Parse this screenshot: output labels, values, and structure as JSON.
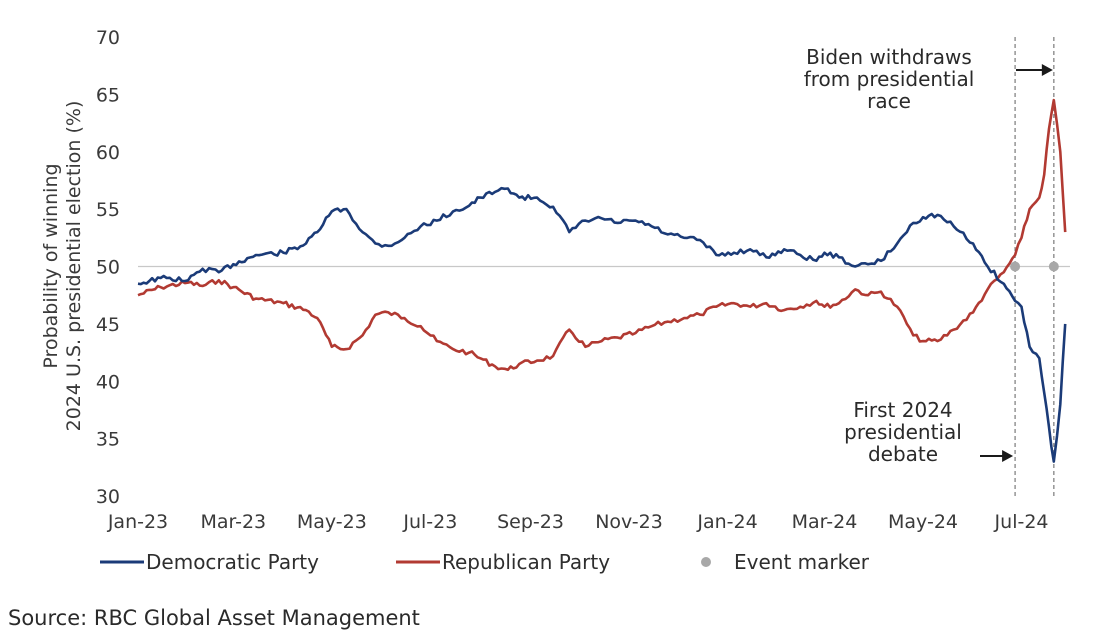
{
  "source": "Source: RBC Global Asset Management",
  "colors": {
    "democratic": "#1b3b78",
    "republican": "#b23a32",
    "event": "#a8a8a8",
    "reference": "#c8c8c8"
  },
  "chart_data": {
    "type": "line",
    "title": "",
    "xlabel": "",
    "ylabel": "Probability of winning 2024 U.S. presidential election (%)",
    "ylabel_lines": [
      "Probability of winning",
      "2024 U.S. presidential election (%)"
    ],
    "ylim": [
      30,
      70
    ],
    "yticks": [
      30,
      35,
      40,
      45,
      50,
      55,
      60,
      65,
      70
    ],
    "xlim": [
      "2023-01-01",
      "2024-07-31"
    ],
    "xticks": [
      {
        "date": "2023-01-01",
        "label": "Jan-23"
      },
      {
        "date": "2023-03-01",
        "label": "Mar-23"
      },
      {
        "date": "2023-05-01",
        "label": "May-23"
      },
      {
        "date": "2023-07-01",
        "label": "Jul-23"
      },
      {
        "date": "2023-09-01",
        "label": "Sep-23"
      },
      {
        "date": "2023-11-01",
        "label": "Nov-23"
      },
      {
        "date": "2024-01-01",
        "label": "Jan-24"
      },
      {
        "date": "2024-03-01",
        "label": "Mar-24"
      },
      {
        "date": "2024-05-01",
        "label": "May-24"
      },
      {
        "date": "2024-07-01",
        "label": "Jul-24"
      }
    ],
    "reference_line": 50,
    "legend_position": "bottom",
    "series": [
      {
        "name": "Democratic Party",
        "x": [
          "2023-01-01",
          "2023-01-15",
          "2023-02-01",
          "2023-02-10",
          "2023-02-20",
          "2023-03-01",
          "2023-03-15",
          "2023-04-01",
          "2023-04-15",
          "2023-04-22",
          "2023-05-01",
          "2023-05-10",
          "2023-05-20",
          "2023-05-28",
          "2023-06-05",
          "2023-06-15",
          "2023-06-25",
          "2023-07-05",
          "2023-07-15",
          "2023-07-25",
          "2023-08-01",
          "2023-08-10",
          "2023-08-18",
          "2023-08-25",
          "2023-09-05",
          "2023-09-15",
          "2023-09-25",
          "2023-10-05",
          "2023-10-15",
          "2023-10-25",
          "2023-11-05",
          "2023-11-15",
          "2023-11-25",
          "2023-12-05",
          "2023-12-15",
          "2023-12-25",
          "2024-01-05",
          "2024-01-15",
          "2024-01-25",
          "2024-02-05",
          "2024-02-15",
          "2024-02-25",
          "2024-03-01",
          "2024-03-10",
          "2024-03-20",
          "2024-03-28",
          "2024-04-05",
          "2024-04-15",
          "2024-04-25",
          "2024-05-01",
          "2024-05-10",
          "2024-05-20",
          "2024-06-01",
          "2024-06-10",
          "2024-06-20",
          "2024-06-27",
          "2024-07-01",
          "2024-07-06",
          "2024-07-12",
          "2024-07-15",
          "2024-07-18",
          "2024-07-21",
          "2024-07-25",
          "2024-07-28"
        ],
        "y": [
          48.5,
          49,
          48.8,
          49.8,
          49.5,
          50.2,
          51,
          51.2,
          52,
          53,
          54.8,
          55,
          53,
          52,
          51.8,
          52.5,
          53.5,
          54,
          54.8,
          55.3,
          56,
          56.5,
          56.8,
          56,
          56,
          55.2,
          53,
          54,
          54.2,
          53.8,
          54,
          53.5,
          52.8,
          52.5,
          52.3,
          51,
          51.2,
          51.5,
          50.8,
          51.5,
          51,
          50.5,
          51.2,
          50.8,
          50,
          50.2,
          50.5,
          52,
          53.8,
          54.3,
          54.5,
          53.5,
          52,
          50,
          48.5,
          47,
          46.5,
          43,
          42,
          39,
          36,
          33,
          38,
          45
        ]
      },
      {
        "name": "Republican Party",
        "x": [
          "2023-01-01",
          "2023-01-15",
          "2023-02-01",
          "2023-02-10",
          "2023-02-20",
          "2023-03-01",
          "2023-03-15",
          "2023-04-01",
          "2023-04-15",
          "2023-04-22",
          "2023-05-01",
          "2023-05-10",
          "2023-05-20",
          "2023-05-28",
          "2023-06-05",
          "2023-06-15",
          "2023-06-25",
          "2023-07-05",
          "2023-07-15",
          "2023-07-25",
          "2023-08-01",
          "2023-08-10",
          "2023-08-18",
          "2023-08-25",
          "2023-09-05",
          "2023-09-15",
          "2023-09-25",
          "2023-10-05",
          "2023-10-15",
          "2023-10-25",
          "2023-11-05",
          "2023-11-15",
          "2023-11-25",
          "2023-12-05",
          "2023-12-15",
          "2023-12-25",
          "2024-01-05",
          "2024-01-15",
          "2024-01-25",
          "2024-02-05",
          "2024-02-15",
          "2024-02-25",
          "2024-03-01",
          "2024-03-10",
          "2024-03-20",
          "2024-03-28",
          "2024-04-05",
          "2024-04-15",
          "2024-04-25",
          "2024-05-01",
          "2024-05-10",
          "2024-05-20",
          "2024-06-01",
          "2024-06-10",
          "2024-06-20",
          "2024-06-27",
          "2024-07-01",
          "2024-07-06",
          "2024-07-12",
          "2024-07-15",
          "2024-07-18",
          "2024-07-21",
          "2024-07-25",
          "2024-07-28"
        ],
        "y": [
          47.5,
          48.2,
          48.6,
          48.3,
          48.8,
          48.2,
          47.2,
          46.8,
          46.2,
          45.5,
          43,
          42.8,
          44,
          45.8,
          46,
          45.5,
          44.8,
          43.5,
          42.8,
          42.5,
          42,
          41.3,
          41,
          41.5,
          41.8,
          42.2,
          44.5,
          43,
          43.5,
          43.8,
          44.2,
          44.8,
          45.2,
          45.5,
          45.8,
          46.5,
          46.8,
          46.5,
          46.8,
          46.2,
          46.5,
          47,
          46.5,
          46.8,
          48,
          47.5,
          47.8,
          46.5,
          44,
          43.5,
          43.5,
          44.5,
          46,
          48,
          49.5,
          51,
          52.5,
          55,
          56,
          58,
          62,
          64.5,
          60,
          53
        ]
      },
      {
        "name": "Event marker",
        "type": "scatter",
        "x": [
          "2024-06-27",
          "2024-07-21"
        ],
        "y": [
          50,
          50
        ]
      }
    ],
    "annotations": [
      {
        "date": "2024-06-27",
        "lines": [
          "First 2024",
          "presidential",
          "debate"
        ]
      },
      {
        "date": "2024-07-21",
        "lines": [
          "Biden withdraws",
          "from presidential",
          "race"
        ]
      }
    ]
  }
}
